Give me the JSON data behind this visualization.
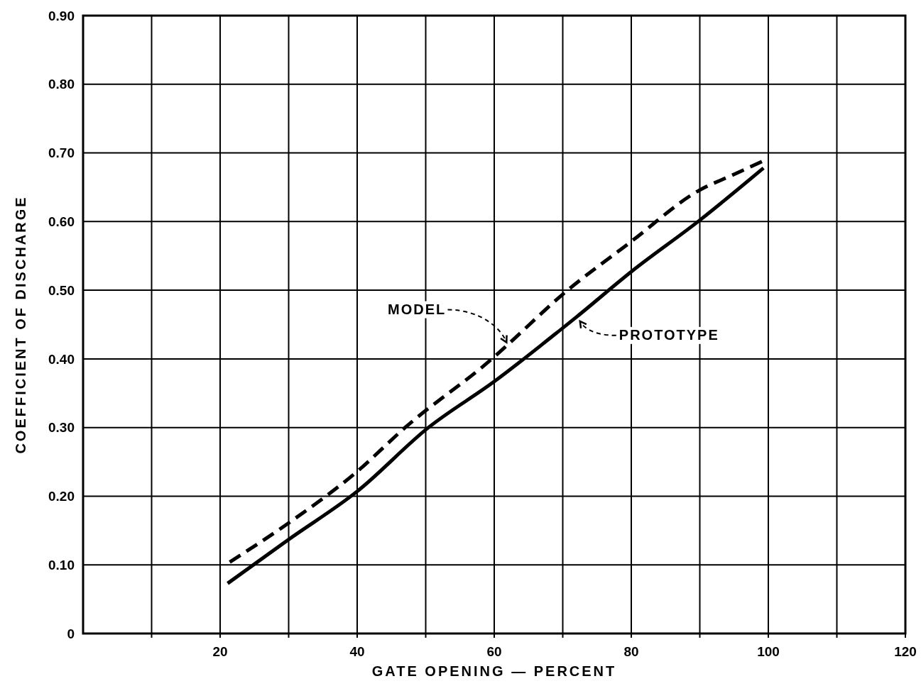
{
  "chart_data": {
    "type": "line",
    "xlabel": "GATE OPENING — PERCENT",
    "ylabel": "COEFFICIENT OF DISCHARGE",
    "xlim": [
      0,
      120
    ],
    "ylim": [
      0,
      0.9
    ],
    "xticks": [
      {
        "value": 10,
        "label": null
      },
      20,
      {
        "value": 30,
        "label": null
      },
      40,
      {
        "value": 50,
        "label": null
      },
      60,
      {
        "value": 70,
        "label": null
      },
      80,
      {
        "value": 90,
        "label": null
      },
      100,
      {
        "value": 110,
        "label": null
      },
      120
    ],
    "yticks": [
      0,
      {
        "value": 0.1,
        "label": "0.10"
      },
      {
        "value": 0.2,
        "label": "0.20"
      },
      {
        "value": 0.3,
        "label": "0.30"
      },
      {
        "value": 0.4,
        "label": "0.40"
      },
      {
        "value": 0.5,
        "label": "0.50"
      },
      {
        "value": 0.6,
        "label": "0.60"
      },
      {
        "value": 0.7,
        "label": "0.70"
      },
      {
        "value": 0.8,
        "label": "0.80"
      },
      {
        "value": 0.9,
        "label": "0.90"
      }
    ],
    "grid": true,
    "series": [
      {
        "color": "#000000",
        "line_style": "dashed",
        "x": [
          21.4,
          30,
          40,
          47,
          60,
          62,
          70,
          80,
          90,
          94.6,
          99.2
        ],
        "values": [
          0.104,
          0.161,
          0.236,
          0.3,
          0.403,
          0.421,
          0.494,
          0.571,
          0.646,
          0.667,
          0.688
        ]
      },
      {
        "color": "#000000",
        "line_style": "solid",
        "x": [
          21.1,
          30,
          40,
          50.4,
          60,
          70,
          72,
          80,
          90,
          99.3
        ],
        "values": [
          0.073,
          0.137,
          0.207,
          0.3,
          0.367,
          0.445,
          0.461,
          0.527,
          0.602,
          0.678
        ]
      }
    ],
    "annotations": [
      {
        "text": "MODEL",
        "x": 62,
        "y": 0.421
      },
      {
        "text": "PROTOTYPE",
        "x": 72,
        "y": 0.461
      }
    ]
  }
}
